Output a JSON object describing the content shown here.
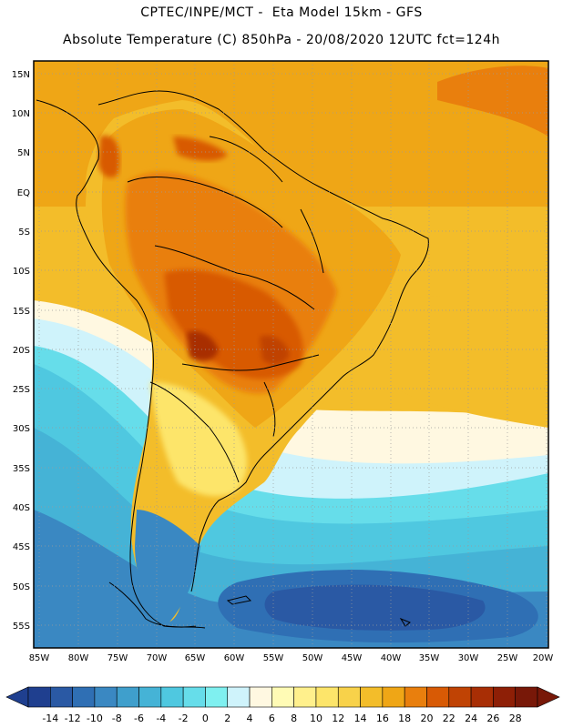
{
  "header": {
    "line1": "CPTEC/INPE/MCT -  Eta Model 15km - GFS",
    "line2": "Absolute Temperature (C) 850hPa - 20/08/2020 12UTC fct=124h"
  },
  "axes": {
    "lat_labels": [
      "15N",
      "10N",
      "5N",
      "EQ",
      "5S",
      "10S",
      "15S",
      "20S",
      "25S",
      "30S",
      "35S",
      "40S",
      "45S",
      "50S",
      "55S"
    ],
    "lon_labels": [
      "85W",
      "80W",
      "75W",
      "70W",
      "65W",
      "60W",
      "55W",
      "50W",
      "45W",
      "40W",
      "35W",
      "30W",
      "25W",
      "20W"
    ]
  },
  "colorbar": {
    "values": [
      "-14",
      "-12",
      "-10",
      "-8",
      "-6",
      "-4",
      "-2",
      "0",
      "2",
      "4",
      "6",
      "8",
      "10",
      "12",
      "14",
      "16",
      "18",
      "20",
      "22",
      "24",
      "26",
      "28"
    ],
    "colors": [
      "#1f3f8f",
      "#2a59a4",
      "#2f6fb4",
      "#3a88c2",
      "#3f9fcc",
      "#45b3d6",
      "#4fc8e0",
      "#66ddea",
      "#7ff0f0",
      "#cff3fb",
      "#fff8e1",
      "#fffbb5",
      "#fff08c",
      "#fde56a",
      "#f8d24a",
      "#f3bd2a",
      "#efa616",
      "#e97f0d",
      "#d85a05",
      "#c04304",
      "#a82e05",
      "#8e1f06",
      "#781808"
    ]
  }
}
